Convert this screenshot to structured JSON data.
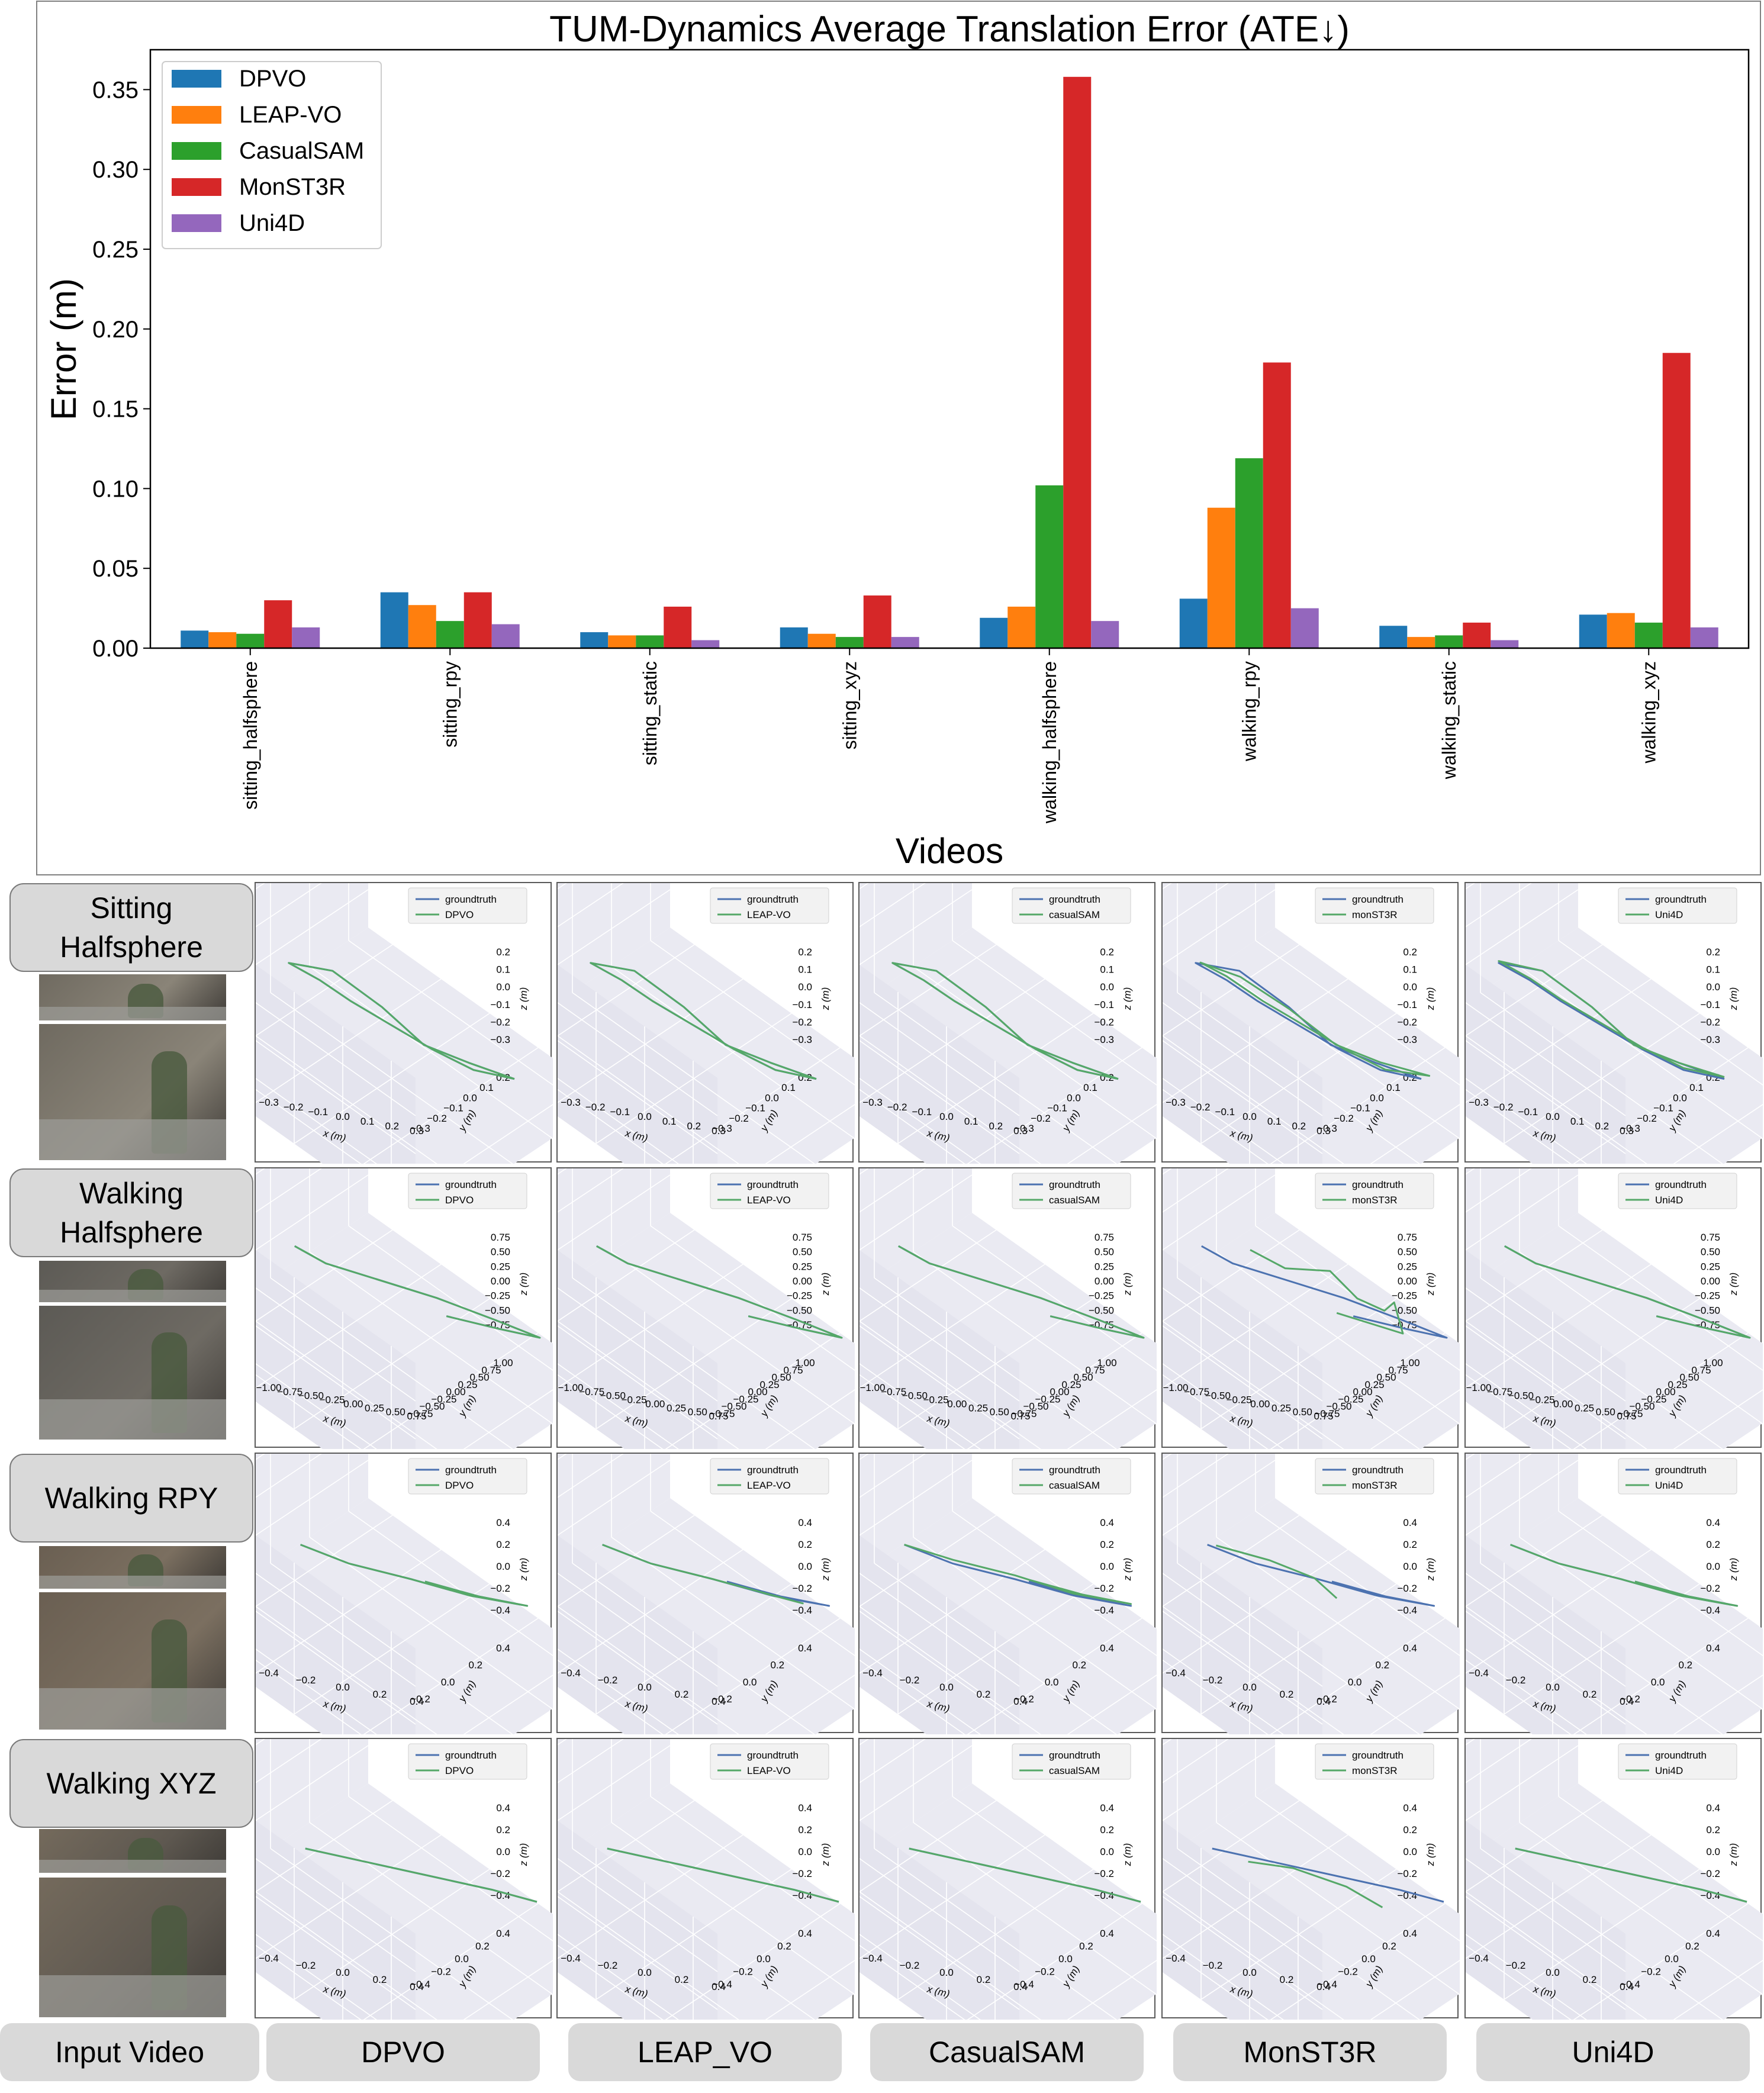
{
  "chart_data": {
    "type": "bar",
    "title": "TUM-Dynamics Average Translation Error (ATE↓)",
    "xlabel": "Videos",
    "ylabel": "Error (m)",
    "ylim": [
      0,
      0.375
    ],
    "yticks": [
      "0.00",
      "0.05",
      "0.10",
      "0.15",
      "0.20",
      "0.25",
      "0.30",
      "0.35"
    ],
    "legend_position": "top-left",
    "grid": false,
    "categories": [
      "sitting_halfsphere",
      "sitting_rpy",
      "sitting_static",
      "sitting_xyz",
      "walking_halfsphere",
      "walking_rpy",
      "walking_static",
      "walking_xyz"
    ],
    "series": [
      {
        "name": "DPVO",
        "color": "#1f77b4",
        "values": [
          0.011,
          0.035,
          0.01,
          0.013,
          0.019,
          0.031,
          0.014,
          0.021
        ]
      },
      {
        "name": "LEAP-VO",
        "color": "#ff7f0e",
        "values": [
          0.01,
          0.027,
          0.008,
          0.009,
          0.026,
          0.088,
          0.007,
          0.022
        ]
      },
      {
        "name": "CasualSAM",
        "color": "#2ca02c",
        "values": [
          0.009,
          0.017,
          0.008,
          0.007,
          0.102,
          0.119,
          0.008,
          0.016
        ]
      },
      {
        "name": "MonST3R",
        "color": "#d62728",
        "values": [
          0.03,
          0.035,
          0.026,
          0.033,
          0.358,
          0.179,
          0.016,
          0.185
        ]
      },
      {
        "name": "Uni4D",
        "color": "#9467bd",
        "values": [
          0.013,
          0.015,
          0.005,
          0.007,
          0.017,
          0.025,
          0.005,
          0.013
        ]
      }
    ]
  },
  "trajectory_grid": {
    "rows": [
      {
        "label": "Sitting\nHalfsphere",
        "z_ticks": [
          "0.2",
          "0.1",
          "0.0",
          "−0.1",
          "−0.2",
          "−0.3"
        ],
        "x_ticks": [
          "−0.3",
          "−0.2",
          "−0.1",
          "0.0",
          "0.1",
          "0.2",
          "0.3"
        ],
        "y_ticks": [
          "0.2",
          "0.1",
          "0.0",
          "−0.1",
          "−0.2",
          "−0.3"
        ]
      },
      {
        "label": "Walking\nHalfsphere",
        "z_ticks": [
          "0.75",
          "0.50",
          "0.25",
          "0.00",
          "−0.25",
          "−0.50",
          "−0.75"
        ],
        "x_ticks": [
          "−1.00",
          "−0.75",
          "−0.50",
          "−0.25",
          "0.00",
          "0.25",
          "0.50",
          "0.75"
        ],
        "y_ticks": [
          "1.00",
          "0.75",
          "0.50",
          "0.25",
          "0.00",
          "−0.25",
          "−0.50",
          "−0.75"
        ]
      },
      {
        "label": "Walking RPY",
        "z_ticks": [
          "0.4",
          "0.2",
          "0.0",
          "−0.2",
          "−0.4"
        ],
        "x_ticks": [
          "−0.4",
          "−0.2",
          "0.0",
          "0.2",
          "0.4"
        ],
        "y_ticks": [
          "0.4",
          "0.2",
          "0.0",
          "−0.2"
        ]
      },
      {
        "label": "Walking XYZ",
        "z_ticks": [
          "0.4",
          "0.2",
          "0.0",
          "−0.2",
          "−0.4"
        ],
        "x_ticks": [
          "−0.4",
          "−0.2",
          "0.0",
          "0.2",
          "0.4"
        ],
        "y_ticks": [
          "0.4",
          "0.2",
          "0.0",
          "−0.2",
          "−0.4"
        ]
      }
    ],
    "columns": [
      {
        "label": "Input Video"
      },
      {
        "label": "DPVO",
        "legend": "DPVO"
      },
      {
        "label": "LEAP_VO",
        "legend": "LEAP-VO"
      },
      {
        "label": "CasualSAM",
        "legend": "casualSAM"
      },
      {
        "label": "MonST3R",
        "legend": "monST3R"
      },
      {
        "label": "Uni4D",
        "legend": "Uni4D"
      }
    ],
    "groundtruth_label": "groundtruth",
    "axis_labels": {
      "x": "x (m)",
      "y": "y (m)",
      "z": "z (m)"
    },
    "colors": {
      "groundtruth": "#4c72b0",
      "estimate": "#55a868",
      "pane": "#eaeaf2"
    }
  }
}
